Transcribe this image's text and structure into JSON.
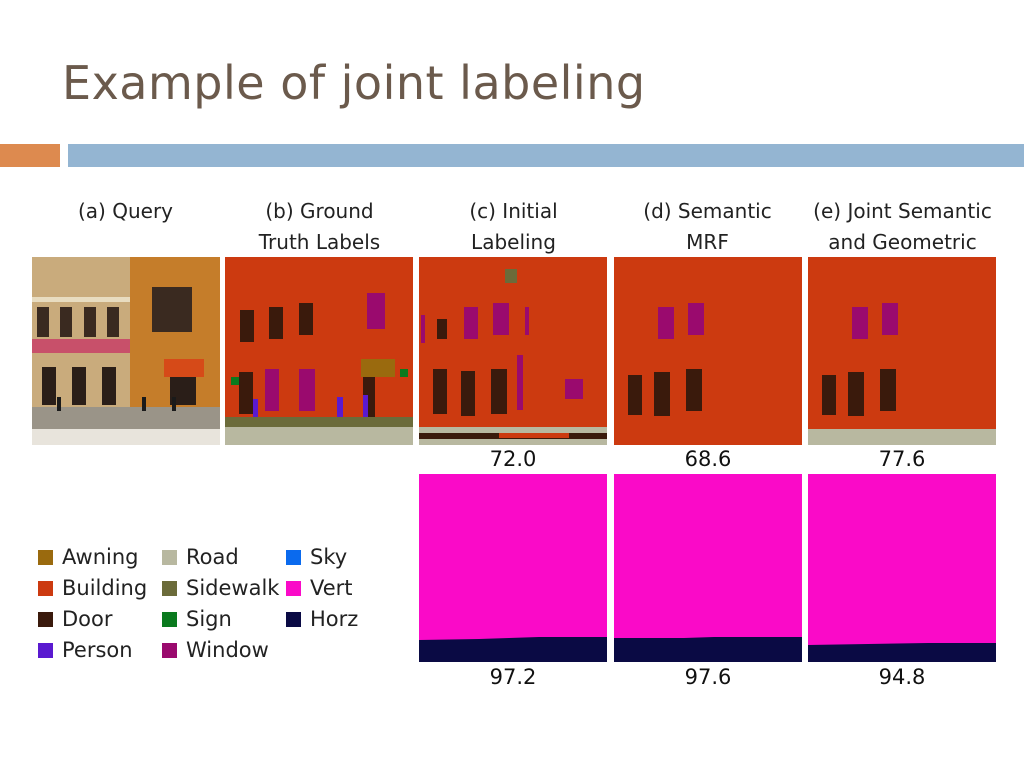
{
  "slide": {
    "title": "Example of joint labeling"
  },
  "columns": [
    {
      "line1": "(a) Query",
      "line2": ""
    },
    {
      "line1": "(b) Ground",
      "line2": "Truth Labels"
    },
    {
      "line1": "(c) Initial",
      "line2": "Labeling"
    },
    {
      "line1": "(d) Semantic",
      "line2": "MRF"
    },
    {
      "line1": "(e) Joint Semantic",
      "line2": "and Geometric"
    }
  ],
  "semantic_scores": [
    "72.0",
    "68.6",
    "77.6"
  ],
  "geometric_scores": [
    "97.2",
    "97.6",
    "94.8"
  ],
  "legend": [
    {
      "label": "Awning",
      "color": "#9a6a0e"
    },
    {
      "label": "Building",
      "color": "#cc3a10"
    },
    {
      "label": "Door",
      "color": "#3a1a0c"
    },
    {
      "label": "Person",
      "color": "#5a1ad0"
    },
    {
      "label": "Road",
      "color": "#b8b8a0"
    },
    {
      "label": "Sidewalk",
      "color": "#6b6b3a"
    },
    {
      "label": "Sign",
      "color": "#0a7a1e"
    },
    {
      "label": "Window",
      "color": "#9a0a6e"
    },
    {
      "label": "Sky",
      "color": "#0a6aee"
    },
    {
      "label": "Vert",
      "color": "#fa0ac8"
    },
    {
      "label": "Horz",
      "color": "#0a0a44"
    }
  ]
}
